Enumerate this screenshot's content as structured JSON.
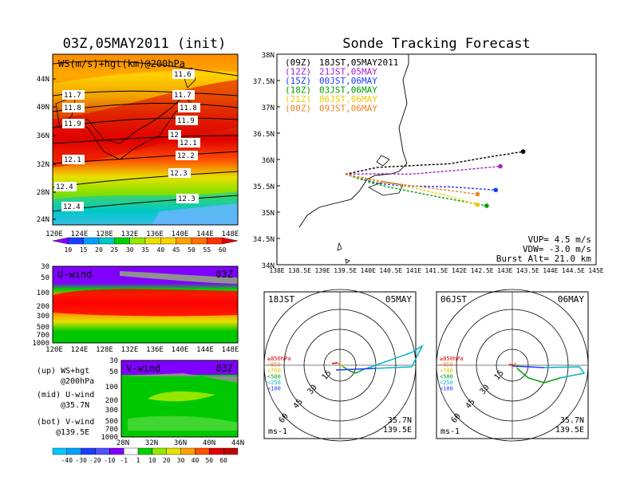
{
  "left": {
    "title": "03Z,05MAY2011 (init)",
    "map": {
      "label": "WS(m/s)+hgt(km)@200hPa",
      "lat_ticks": [
        "44N",
        "40N",
        "36N",
        "32N",
        "28N",
        "24N"
      ],
      "lon_ticks": [
        "120E",
        "124E",
        "128E",
        "132E",
        "136E",
        "140E",
        "144E",
        "148E"
      ],
      "contour_labels": [
        "11.6",
        "11.7",
        "11.7",
        "11.8",
        "11.8",
        "11.9",
        "11.9",
        "12",
        "12.1",
        "12.1",
        "12.2",
        "12.3",
        "12.4",
        "12.4",
        "12.3"
      ]
    },
    "ws_colorbar": [
      "10",
      "15",
      "20",
      "25",
      "30",
      "35",
      "40",
      "45",
      "50",
      "55",
      "60"
    ],
    "uwind": {
      "label": "U-wind",
      "time": "03Z",
      "p_ticks": [
        "30",
        "50",
        "100",
        "200",
        "300",
        "500",
        "700",
        "1000"
      ],
      "lon_ticks": [
        "120E",
        "124E",
        "128E",
        "132E",
        "136E",
        "140E",
        "144E",
        "148E"
      ]
    },
    "vwind": {
      "label": "V-wind",
      "time": "03Z",
      "p_ticks": [
        "30",
        "50",
        "100",
        "200",
        "300",
        "500",
        "700",
        "1000"
      ],
      "lat_ticks": [
        "28N",
        "32N",
        "36N",
        "40N",
        "44N"
      ]
    },
    "legend": {
      "up": "(up) WS+hgt",
      "up2": "@200hPa",
      "mid": "(mid) U-wind",
      "mid2": "@35.7N",
      "bot": "(bot) V-wind",
      "bot2": "@139.5E"
    },
    "wind_colorbar": [
      "-40",
      "-30",
      "-20",
      "-10",
      "-1",
      "1",
      "10",
      "20",
      "30",
      "40",
      "50",
      "60"
    ]
  },
  "right": {
    "title": "Sonde Tracking Forecast",
    "launches": [
      {
        "z": "(09Z)",
        "text": "18JST,05MAY2011",
        "color": "#000000"
      },
      {
        "z": "(12Z)",
        "text": "21JST,05MAY",
        "color": "#a020c8"
      },
      {
        "z": "(15Z)",
        "text": "00JST,06MAY",
        "color": "#1e3cff"
      },
      {
        "z": "(18Z)",
        "text": "03JST,06MAY",
        "color": "#00a000"
      },
      {
        "z": "(21Z)",
        "text": "06JST,06MAY",
        "color": "#f0c800"
      },
      {
        "z": "(00Z)",
        "text": "09JST,06MAY",
        "color": "#f08228"
      }
    ],
    "lat_ticks": [
      "38N",
      "37.5N",
      "37N",
      "36.5N",
      "36N",
      "35.5N",
      "35N",
      "34.5N",
      "34N"
    ],
    "lon_ticks": [
      "138E",
      "138.5E",
      "139E",
      "139.5E",
      "140E",
      "140.5E",
      "141E",
      "141.5E",
      "142E",
      "142.5E",
      "143E",
      "143.5E",
      "144E",
      "144.5E",
      "145E"
    ],
    "params": {
      "vup": "VUP= 4.5 m/s",
      "vdw": "VDW= -3.0 m/s",
      "burst": "Burst Alt= 21.0 km"
    }
  },
  "hodo1": {
    "time": "18JST",
    "date": "05MAY",
    "rings": [
      "15",
      "30",
      "45",
      "60"
    ],
    "unit": "ms-1",
    "loc1": "35.7N",
    "loc2": "139.5E",
    "levels": [
      {
        "t": "≥850hPa",
        "c": "#e00000"
      },
      {
        "t": "<850",
        "c": "#f08228"
      },
      {
        "t": "<700",
        "c": "#e0c000"
      },
      {
        "t": "<500",
        "c": "#00a000"
      },
      {
        "t": "<250",
        "c": "#00b4c8"
      },
      {
        "t": "<100",
        "c": "#1e3cff"
      }
    ]
  },
  "hodo2": {
    "time": "06JST",
    "date": "06MAY",
    "rings": [
      "15",
      "30",
      "45",
      "60"
    ],
    "unit": "ms-1",
    "loc1": "35.7N",
    "loc2": "139.5E",
    "levels": [
      {
        "t": "≥850hPa",
        "c": "#e00000"
      },
      {
        "t": "<850",
        "c": "#f08228"
      },
      {
        "t": "<700",
        "c": "#e0c000"
      },
      {
        "t": "<500",
        "c": "#00a000"
      },
      {
        "t": "<250",
        "c": "#00b4c8"
      },
      {
        "t": "<100",
        "c": "#1e3cff"
      }
    ]
  },
  "chart_data": [
    {
      "type": "line",
      "title": "Sonde Tracking Forecast",
      "xlabel": "",
      "ylabel": "",
      "xlim": [
        138,
        145
      ],
      "ylim": [
        34,
        38
      ],
      "series": [
        {
          "name": "(09Z) 18JST,05MAY2011",
          "x": [
            139.5,
            140.2,
            140.9,
            141.8,
            142.6,
            143.4
          ],
          "y": [
            35.72,
            35.85,
            35.88,
            35.92,
            36.04,
            36.15
          ]
        },
        {
          "name": "(12Z) 21JST,05MAY",
          "x": [
            139.5,
            140.3,
            140.9,
            141.9,
            142.9
          ],
          "y": [
            35.72,
            35.73,
            35.72,
            35.79,
            35.87
          ]
        },
        {
          "name": "(15Z) 00JST,06MAY",
          "x": [
            139.5,
            140.2,
            140.7,
            141.8,
            142.8
          ],
          "y": [
            35.72,
            35.55,
            35.5,
            35.48,
            35.42
          ]
        },
        {
          "name": "(18Z) 03JST,06MAY",
          "x": [
            139.5,
            140.1,
            140.6,
            141.6,
            142.6
          ],
          "y": [
            35.72,
            35.55,
            35.45,
            35.28,
            35.12
          ]
        },
        {
          "name": "(21Z) 06JST,06MAY",
          "x": [
            139.5,
            140.2,
            140.8,
            141.7,
            142.4
          ],
          "y": [
            35.72,
            35.58,
            35.5,
            35.32,
            35.14
          ]
        },
        {
          "name": "(00Z) 09JST,06MAY",
          "x": [
            139.5,
            140.2,
            140.8,
            141.7,
            142.4
          ],
          "y": [
            35.72,
            35.6,
            35.52,
            35.42,
            35.34
          ]
        }
      ]
    }
  ]
}
